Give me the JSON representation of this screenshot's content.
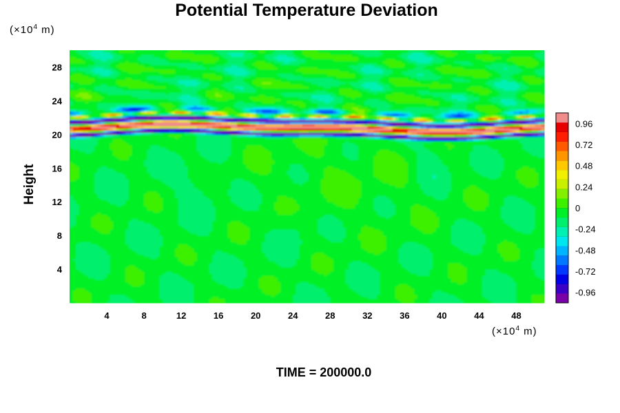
{
  "chart_data": {
    "type": "heatmap",
    "title": "Potential Temperature Deviation",
    "ylabel": "Height",
    "x_unit": {
      "prefix": "(×10",
      "exponent": "4",
      "suffix": " m)"
    },
    "y_unit": {
      "prefix": "(×10",
      "exponent": "4",
      "suffix": " m)"
    },
    "xlim": [
      0,
      51
    ],
    "ylim": [
      0,
      30
    ],
    "x_ticks": [
      4,
      8,
      12,
      16,
      20,
      24,
      28,
      32,
      36,
      40,
      44,
      48
    ],
    "y_ticks": [
      4,
      8,
      12,
      16,
      20,
      24,
      28
    ],
    "colorbar": {
      "range": [
        -1.08,
        1.08
      ],
      "labels": [
        "0.96",
        "0.72",
        "0.48",
        "0.24",
        "0",
        "-0.24",
        "-0.48",
        "-0.72",
        "-0.96"
      ],
      "label_values": [
        0.96,
        0.72,
        0.48,
        0.24,
        0,
        -0.24,
        -0.48,
        -0.72,
        -0.96
      ],
      "colors": [
        "#7a00a8",
        "#3a00c8",
        "#0000e6",
        "#0038ff",
        "#0078ff",
        "#00b4ff",
        "#00e6f0",
        "#00f0b4",
        "#00f06e",
        "#00f028",
        "#3cf000",
        "#82f000",
        "#c8f000",
        "#f0f000",
        "#ffc800",
        "#ff9600",
        "#ff5a00",
        "#ff1e00",
        "#e60000",
        "#f08c8c"
      ]
    },
    "field_description": {
      "background_value": -0.08,
      "band_center_height": 20.8,
      "band_amplitude": 0.96
    },
    "time_label": "TIME = 200000.0"
  }
}
